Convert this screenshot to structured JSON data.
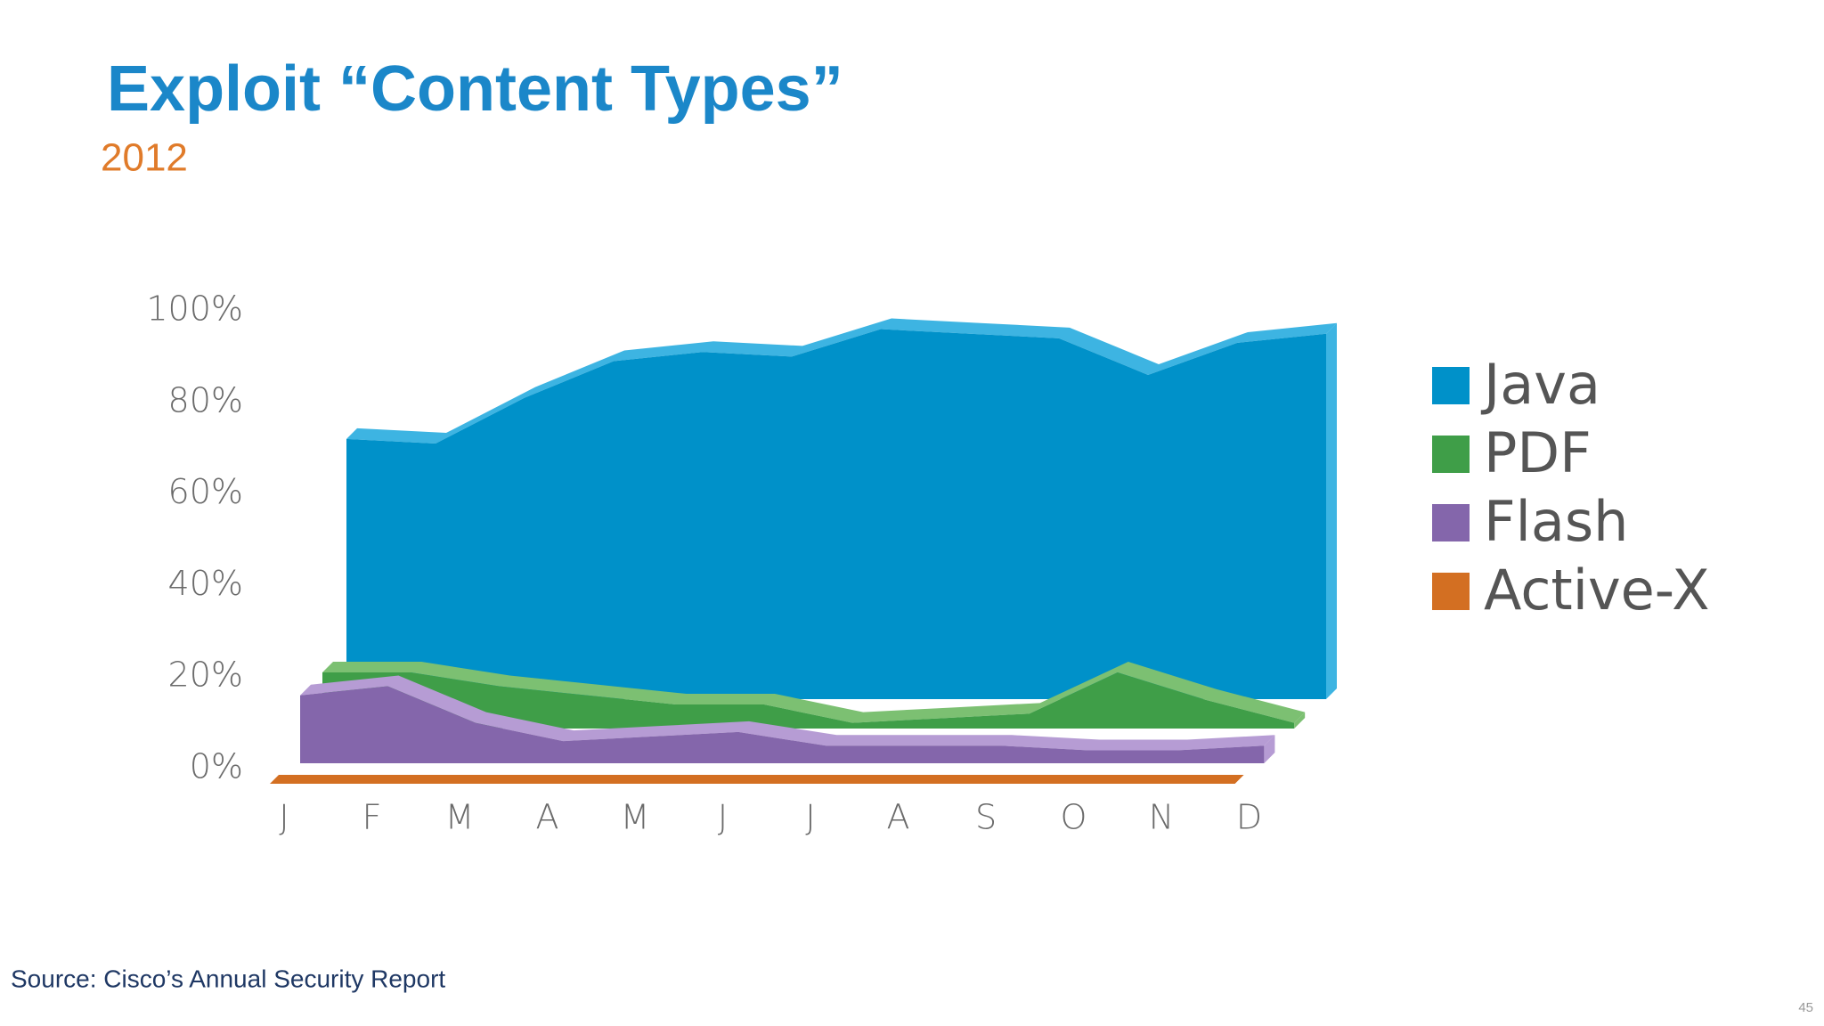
{
  "chart_data": {
    "type": "area3d",
    "title": "Exploit “Content Types”",
    "subtitle": "2012",
    "categories": [
      "J",
      "F",
      "M",
      "A",
      "M",
      "J",
      "J",
      "A",
      "S",
      "O",
      "N",
      "D"
    ],
    "series": [
      {
        "name": "Java",
        "color": "#0091c9",
        "top_color": "#3db4e2",
        "values": [
          72,
          71,
          81,
          89,
          91,
          90,
          96,
          95,
          94,
          86,
          93,
          95
        ]
      },
      {
        "name": "PDF",
        "color": "#3f9e48",
        "top_color": "#7cc072",
        "values": [
          21,
          21,
          18,
          16,
          14,
          14,
          10,
          11,
          12,
          21,
          15,
          10
        ]
      },
      {
        "name": "Flash",
        "color": "#8466ab",
        "top_color": "#b69cd4",
        "values": [
          16,
          18,
          10,
          6,
          7,
          8,
          5,
          5,
          5,
          4,
          4,
          5
        ]
      },
      {
        "name": "Active-X",
        "color": "#d36f22",
        "top_color": "#e08a44",
        "values": [
          1,
          1,
          1,
          1,
          1,
          1,
          1,
          1,
          1,
          1,
          1,
          1
        ]
      }
    ],
    "ylim": [
      0,
      100
    ],
    "yticks": [
      {
        "value": 0,
        "label": "0%"
      },
      {
        "value": 20,
        "label": "20%"
      },
      {
        "value": 40,
        "label": "40%"
      },
      {
        "value": 60,
        "label": "60%"
      },
      {
        "value": 80,
        "label": "80%"
      },
      {
        "value": 100,
        "label": "100%"
      }
    ],
    "legend": "right"
  },
  "source": "Source: Cisco’s Annual Security Report",
  "page_number": "45"
}
